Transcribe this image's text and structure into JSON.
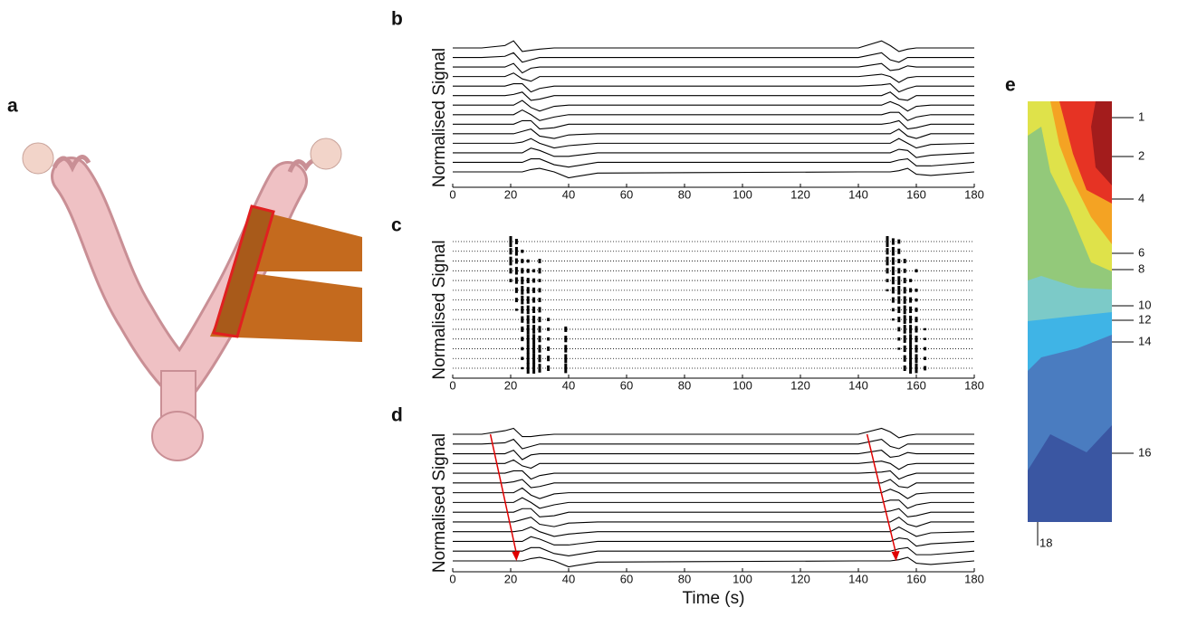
{
  "panels": {
    "a": {
      "label": "a"
    }
  },
  "chart_data": [
    {
      "type": "line",
      "label": "b",
      "y_label": "Normalised Signal",
      "color": "#000000",
      "x": [
        0,
        10,
        18,
        21,
        24,
        27,
        30,
        35,
        40,
        50,
        140,
        148,
        151,
        154,
        157,
        160,
        165,
        180
      ],
      "xlim": [
        0,
        180
      ],
      "xticks": [
        0,
        20,
        40,
        60,
        80,
        100,
        120,
        140,
        160,
        180
      ],
      "series": [
        {
          "values": [
            0,
            0,
            0.2,
            0.6,
            -0.3,
            -0.2,
            -0.1,
            0,
            0,
            0,
            0,
            0.6,
            0.2,
            -0.3,
            -0.1,
            0,
            0,
            0
          ]
        },
        {
          "values": [
            0,
            0,
            0.1,
            0.4,
            -0.4,
            -0.2,
            0,
            0,
            0,
            0,
            0,
            0.4,
            -0.2,
            -0.4,
            0,
            0,
            0,
            0
          ]
        },
        {
          "values": [
            0,
            0,
            0,
            0.3,
            -0.5,
            -0.1,
            0,
            0,
            0,
            0,
            0,
            0.3,
            -0.3,
            -0.2,
            0.1,
            0,
            0,
            0
          ]
        },
        {
          "values": [
            0,
            0,
            0,
            0.3,
            -0.2,
            -0.4,
            0,
            0,
            0,
            0,
            0,
            0.2,
            0,
            -0.5,
            -0.1,
            0,
            0,
            0
          ]
        },
        {
          "values": [
            0,
            0,
            0,
            0.2,
            0.2,
            -0.5,
            -0.2,
            0,
            0,
            0,
            0,
            0.1,
            0.2,
            -0.5,
            -0.2,
            0,
            0,
            0
          ]
        },
        {
          "values": [
            0,
            0,
            0,
            0.1,
            0.3,
            -0.4,
            -0.3,
            0,
            0,
            0,
            0,
            0,
            0.3,
            -0.3,
            -0.4,
            0,
            0,
            0
          ]
        },
        {
          "values": [
            0,
            0,
            0,
            0,
            0.4,
            -0.2,
            -0.5,
            -0.1,
            0,
            0,
            0,
            0,
            0.3,
            0,
            -0.5,
            -0.1,
            0,
            0
          ]
        },
        {
          "values": [
            0,
            0,
            0,
            0,
            0.4,
            0,
            -0.5,
            -0.2,
            0,
            0,
            0,
            0,
            0.2,
            0.2,
            -0.5,
            -0.2,
            0,
            0
          ]
        },
        {
          "values": [
            0,
            0,
            0,
            0,
            0.3,
            0.3,
            -0.4,
            -0.3,
            0,
            0,
            0,
            0,
            0.1,
            0.3,
            -0.4,
            -0.3,
            0,
            0
          ]
        },
        {
          "values": [
            0,
            0,
            0,
            0,
            0.2,
            0.4,
            -0.2,
            -0.4,
            -0.1,
            0,
            0,
            0,
            0,
            0.4,
            -0.2,
            -0.4,
            0,
            0
          ]
        },
        {
          "values": [
            0,
            0,
            0,
            0,
            0.1,
            0.4,
            0,
            -0.4,
            -0.2,
            0,
            0,
            0,
            0,
            0.4,
            0,
            -0.4,
            -0.1,
            0
          ]
        },
        {
          "values": [
            0,
            0,
            0,
            0,
            0,
            0.4,
            0.2,
            -0.3,
            -0.3,
            0,
            0,
            0,
            0,
            0.3,
            0.2,
            -0.4,
            -0.2,
            0
          ]
        },
        {
          "values": [
            0,
            0,
            0,
            0,
            0,
            0.3,
            0.3,
            -0.2,
            -0.4,
            0,
            0,
            0,
            0,
            0.2,
            0.3,
            -0.3,
            -0.3,
            0
          ]
        },
        {
          "values": [
            0,
            0,
            0,
            0,
            0,
            0.2,
            0.3,
            0,
            -0.5,
            -0.1,
            0,
            0,
            0,
            0.1,
            0.3,
            -0.2,
            -0.3,
            0
          ]
        }
      ]
    },
    {
      "type": "raster",
      "label": "c",
      "y_label": "Normalised Signal",
      "color": "#000000",
      "x": [
        20,
        22,
        24,
        26,
        28,
        30,
        33,
        39,
        150,
        152,
        154,
        156,
        158,
        160,
        163
      ],
      "xlim": [
        0,
        180
      ],
      "xticks": [
        0,
        20,
        40,
        60,
        80,
        100,
        120,
        140,
        160,
        180
      ],
      "series": [
        {
          "values": [
            1,
            0.5,
            0,
            0,
            0,
            0,
            0,
            0,
            1,
            0.6,
            0.4,
            0,
            0,
            0,
            0
          ]
        },
        {
          "values": [
            0.6,
            0.8,
            0.3,
            0,
            0,
            0,
            0,
            0,
            0.6,
            0.8,
            0.5,
            0,
            0,
            0,
            0
          ]
        },
        {
          "values": [
            0.8,
            0.5,
            0.4,
            0.3,
            0,
            0.4,
            0,
            0,
            0.8,
            0.7,
            0.4,
            0.4,
            0,
            0,
            0
          ]
        },
        {
          "values": [
            0.5,
            0.7,
            0.5,
            0.4,
            0.3,
            0.5,
            0,
            0,
            0.5,
            0.8,
            0.5,
            0.4,
            0,
            0.3,
            0
          ]
        },
        {
          "values": [
            0.3,
            0.6,
            0.7,
            0.5,
            0.4,
            0.3,
            0,
            0,
            0.3,
            0.7,
            0.8,
            0.5,
            0.3,
            0,
            0
          ]
        },
        {
          "values": [
            0,
            0.5,
            0.8,
            0.6,
            0.5,
            0.4,
            0,
            0,
            0.2,
            0.6,
            0.8,
            0.6,
            0.4,
            0.3,
            0
          ]
        },
        {
          "values": [
            0,
            0.4,
            0.8,
            0.7,
            0.5,
            0.4,
            0,
            0,
            0,
            0.5,
            0.7,
            0.7,
            0.5,
            0.3,
            0
          ]
        },
        {
          "values": [
            0,
            0.2,
            0.7,
            0.8,
            0.6,
            0.5,
            0,
            0,
            0,
            0.3,
            0.6,
            0.8,
            0.6,
            0.4,
            0
          ]
        },
        {
          "values": [
            0,
            0,
            0.6,
            0.8,
            0.7,
            0.5,
            0.3,
            0,
            0,
            0.2,
            0.5,
            0.8,
            0.7,
            0.5,
            0
          ]
        },
        {
          "values": [
            0,
            0,
            0.5,
            0.9,
            0.8,
            0.6,
            0.3,
            0.5,
            0,
            0,
            0.4,
            0.8,
            0.8,
            0.6,
            0.2
          ]
        },
        {
          "values": [
            0,
            0,
            0.4,
            0.9,
            0.9,
            0.6,
            0.3,
            0.6,
            0,
            0,
            0.3,
            0.7,
            0.9,
            0.6,
            0.2
          ]
        },
        {
          "values": [
            0,
            0,
            0.3,
            0.9,
            0.9,
            0.7,
            0.4,
            0.7,
            0,
            0,
            0.2,
            0.6,
            0.9,
            0.7,
            0.3
          ]
        },
        {
          "values": [
            0,
            0,
            0.3,
            1,
            0.9,
            0.7,
            0.5,
            0.8,
            0,
            0,
            0,
            0.6,
            1,
            0.8,
            0.3
          ]
        },
        {
          "values": [
            0,
            0,
            0.2,
            1,
            1,
            0.8,
            0.5,
            0.9,
            0,
            0,
            0,
            0.5,
            1,
            0.9,
            0.4
          ]
        }
      ]
    },
    {
      "type": "line",
      "label": "d",
      "y_label": "Normalised Signal",
      "x_label": "Time (s)",
      "color": "#000000",
      "x": [
        0,
        10,
        18,
        21,
        24,
        27,
        30,
        35,
        40,
        50,
        140,
        148,
        151,
        154,
        157,
        160,
        165,
        180
      ],
      "xlim": [
        0,
        180
      ],
      "xticks": [
        0,
        20,
        40,
        60,
        80,
        100,
        120,
        140,
        160,
        180
      ],
      "arrows": {
        "color": "#e00000",
        "x": [
          [
            13,
            22
          ],
          [
            143,
            153
          ]
        ]
      },
      "series": [
        {
          "values": [
            0,
            0,
            0.3,
            0.5,
            -0.2,
            -0.2,
            -0.1,
            0,
            0,
            0,
            0,
            0.5,
            0.2,
            -0.3,
            -0.1,
            0,
            0,
            0
          ]
        },
        {
          "values": [
            0,
            0,
            0.1,
            0.4,
            -0.4,
            -0.2,
            0,
            0,
            0,
            0,
            0,
            0.4,
            -0.2,
            -0.4,
            0,
            0,
            0,
            0
          ]
        },
        {
          "values": [
            0,
            0,
            0,
            0.3,
            -0.5,
            -0.1,
            0,
            0,
            0,
            0,
            0,
            0.3,
            -0.3,
            -0.2,
            0.1,
            0,
            0,
            0
          ]
        },
        {
          "values": [
            0,
            0,
            0,
            0.3,
            -0.2,
            -0.4,
            0,
            0,
            0,
            0,
            0,
            0.2,
            0,
            -0.5,
            -0.1,
            0,
            0,
            0
          ]
        },
        {
          "values": [
            0,
            0,
            0,
            0.2,
            0.2,
            -0.5,
            -0.2,
            0,
            0,
            0,
            0,
            0.1,
            0.2,
            -0.5,
            -0.2,
            0,
            0,
            0
          ]
        },
        {
          "values": [
            0,
            0,
            0,
            0.1,
            0.3,
            -0.4,
            -0.3,
            0,
            0,
            0,
            0,
            0,
            0.3,
            -0.3,
            -0.4,
            0,
            0,
            0
          ]
        },
        {
          "values": [
            0,
            0,
            0,
            0,
            0.4,
            -0.2,
            -0.5,
            -0.1,
            0,
            0,
            0,
            0,
            0.3,
            0,
            -0.5,
            -0.1,
            0,
            0
          ]
        },
        {
          "values": [
            0,
            0,
            0,
            0,
            0.4,
            0,
            -0.5,
            -0.2,
            0,
            0,
            0,
            0,
            0.2,
            0.2,
            -0.5,
            -0.2,
            0,
            0
          ]
        },
        {
          "values": [
            0,
            0,
            0,
            0,
            0.3,
            0.3,
            -0.4,
            -0.3,
            0,
            0,
            0,
            0,
            0.1,
            0.3,
            -0.4,
            -0.3,
            0,
            0
          ]
        },
        {
          "values": [
            0,
            0,
            0,
            0,
            0.2,
            0.4,
            -0.2,
            -0.4,
            -0.1,
            0,
            0,
            0,
            0,
            0.4,
            -0.2,
            -0.4,
            0,
            0
          ]
        },
        {
          "values": [
            0,
            0,
            0,
            0,
            0.1,
            0.4,
            0,
            -0.4,
            -0.2,
            0,
            0,
            0,
            0,
            0.4,
            0,
            -0.4,
            -0.1,
            0
          ]
        },
        {
          "values": [
            0,
            0,
            0,
            0,
            0,
            0.4,
            0.2,
            -0.3,
            -0.3,
            0,
            0,
            0,
            0,
            0.3,
            0.2,
            -0.4,
            -0.2,
            0
          ]
        },
        {
          "values": [
            0,
            0,
            0,
            0,
            0,
            0.3,
            0.3,
            -0.2,
            -0.4,
            0,
            0,
            0,
            0,
            0.2,
            0.3,
            -0.3,
            -0.3,
            0
          ]
        },
        {
          "values": [
            0,
            0,
            0,
            0,
            0,
            0.2,
            0.3,
            0,
            -0.5,
            -0.1,
            0,
            0,
            0,
            0.1,
            0.3,
            -0.2,
            -0.3,
            0
          ]
        }
      ]
    }
  ],
  "electrode_map": {
    "label": "e",
    "electrodes": [
      1,
      2,
      4,
      6,
      8,
      10,
      12,
      14,
      16,
      18
    ]
  }
}
